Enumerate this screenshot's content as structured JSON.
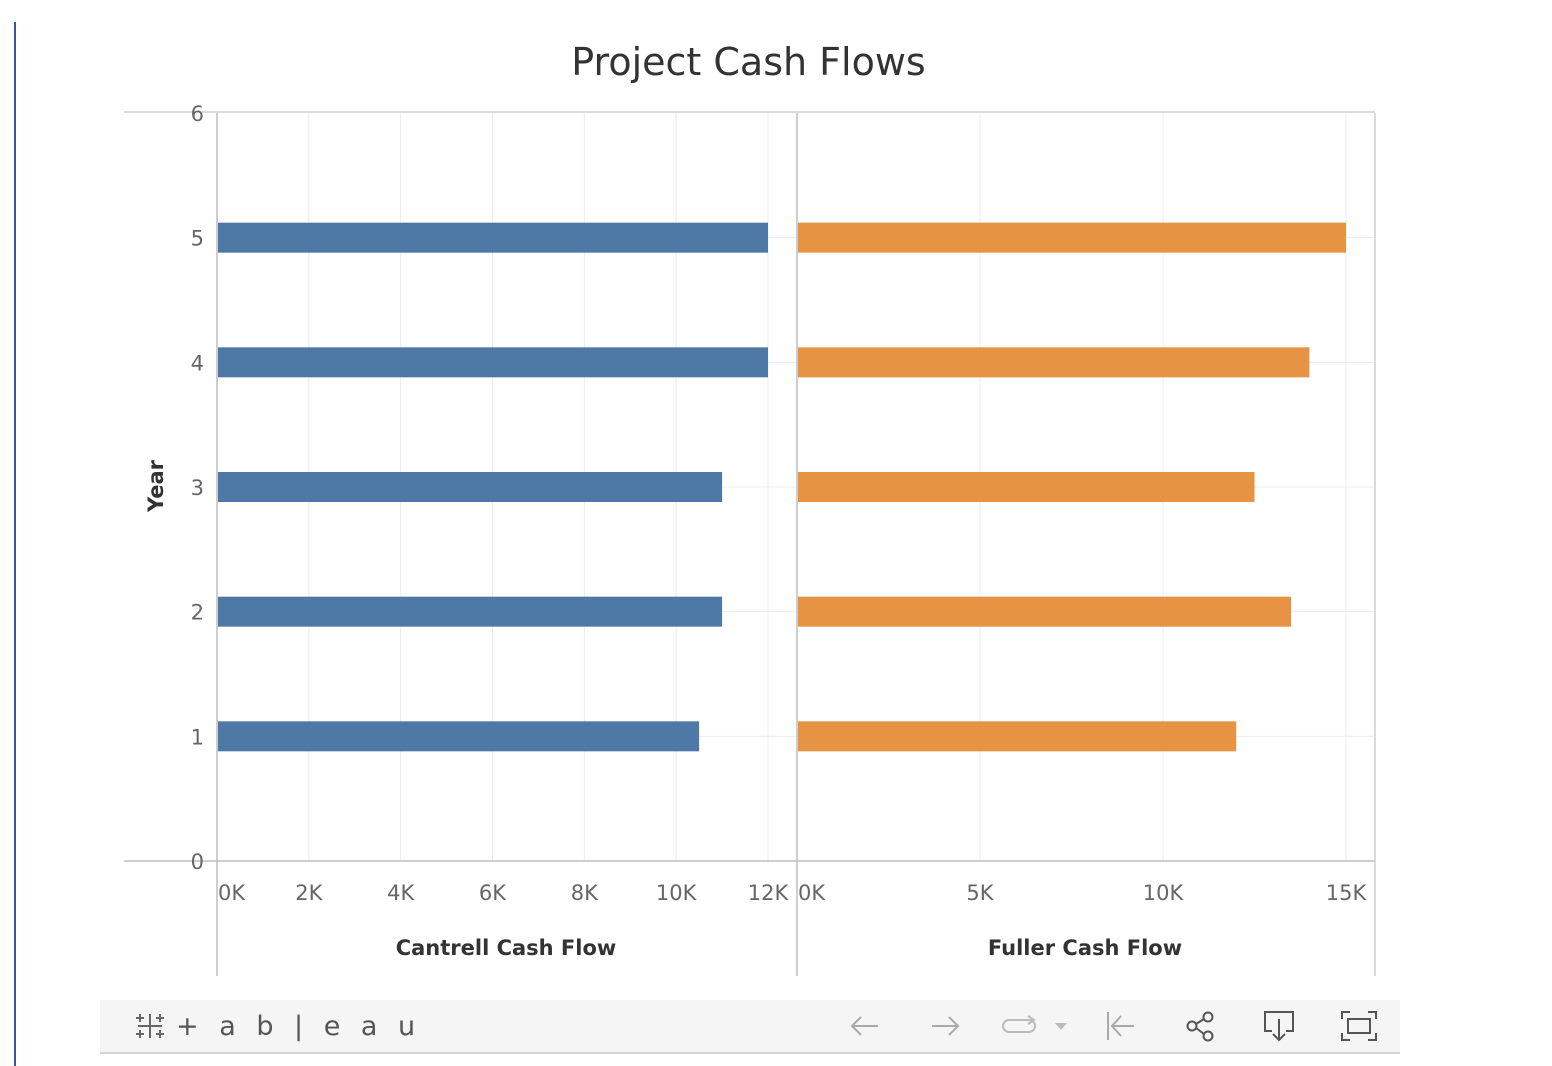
{
  "chart_data": {
    "type": "bar",
    "title": "Project Cash Flows",
    "ylabel": "Year",
    "y_categories": [
      1,
      2,
      3,
      4,
      5
    ],
    "y_ticks": [
      "0",
      "1",
      "2",
      "3",
      "4",
      "5",
      "6"
    ],
    "ylim": [
      0,
      6
    ],
    "panels": [
      {
        "name": "Cantrell Cash Flow",
        "xlabel": "Cantrell Cash Flow",
        "color": "#4e79a7",
        "xlim": [
          0,
          12000
        ],
        "x_ticks": [
          0,
          2000,
          4000,
          6000,
          8000,
          10000,
          12000
        ],
        "x_tick_labels": [
          "0K",
          "2K",
          "4K",
          "6K",
          "8K",
          "10K",
          "12K"
        ],
        "values": [
          10500,
          11000,
          11000,
          12000,
          12000
        ]
      },
      {
        "name": "Fuller Cash Flow",
        "xlabel": "Fuller Cash Flow",
        "color": "#e69344",
        "xlim": [
          0,
          15000
        ],
        "x_ticks": [
          0,
          5000,
          10000,
          15000
        ],
        "x_tick_labels": [
          "0K",
          "5K",
          "10K",
          "15K"
        ],
        "values": [
          12000,
          13500,
          12500,
          14000,
          15000
        ]
      }
    ]
  },
  "toolbar": {
    "logo_text": "+ a b | e a u",
    "logo_icon": "tableau-cross-icon",
    "undo_icon": "arrow-left-icon",
    "redo_icon": "arrow-right-icon",
    "replay_icon": "replay-icon",
    "revert_icon": "revert-icon",
    "share_icon": "share-icon",
    "download_icon": "download-icon",
    "fullscreen_icon": "fullscreen-icon"
  }
}
